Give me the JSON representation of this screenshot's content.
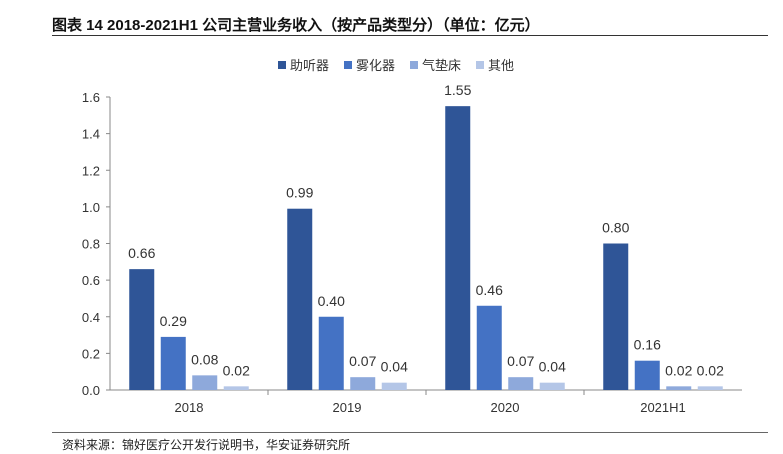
{
  "title": "图表 14 2018-2021H1 公司主营业务收入（按产品类型分）（单位：亿元）",
  "source": "资料来源：锦好医疗公开发行说明书，华安证券研究所",
  "chart_data": {
    "type": "bar",
    "title": "图表 14 2018-2021H1 公司主营业务收入（按产品类型分）（单位：亿元）",
    "categories": [
      "2018",
      "2019",
      "2020",
      "2021H1"
    ],
    "series": [
      {
        "name": "助听器",
        "values": [
          0.66,
          0.99,
          1.55,
          0.8
        ],
        "color": "#2F5597"
      },
      {
        "name": "雾化器",
        "values": [
          0.29,
          0.4,
          0.46,
          0.16
        ],
        "color": "#4472C4"
      },
      {
        "name": "气垫床",
        "values": [
          0.08,
          0.07,
          0.07,
          0.02
        ],
        "color": "#8EA9DB"
      },
      {
        "name": "其他",
        "values": [
          0.02,
          0.04,
          0.04,
          0.02
        ],
        "color": "#B4C6E7"
      }
    ],
    "ylim": [
      0,
      1.6
    ],
    "yticks": [
      "0.0",
      "0.2",
      "0.4",
      "0.6",
      "0.8",
      "1.0",
      "1.2",
      "1.4",
      "1.6"
    ],
    "legend_position": "top-center",
    "grid": false,
    "xlabel": "",
    "ylabel": ""
  }
}
